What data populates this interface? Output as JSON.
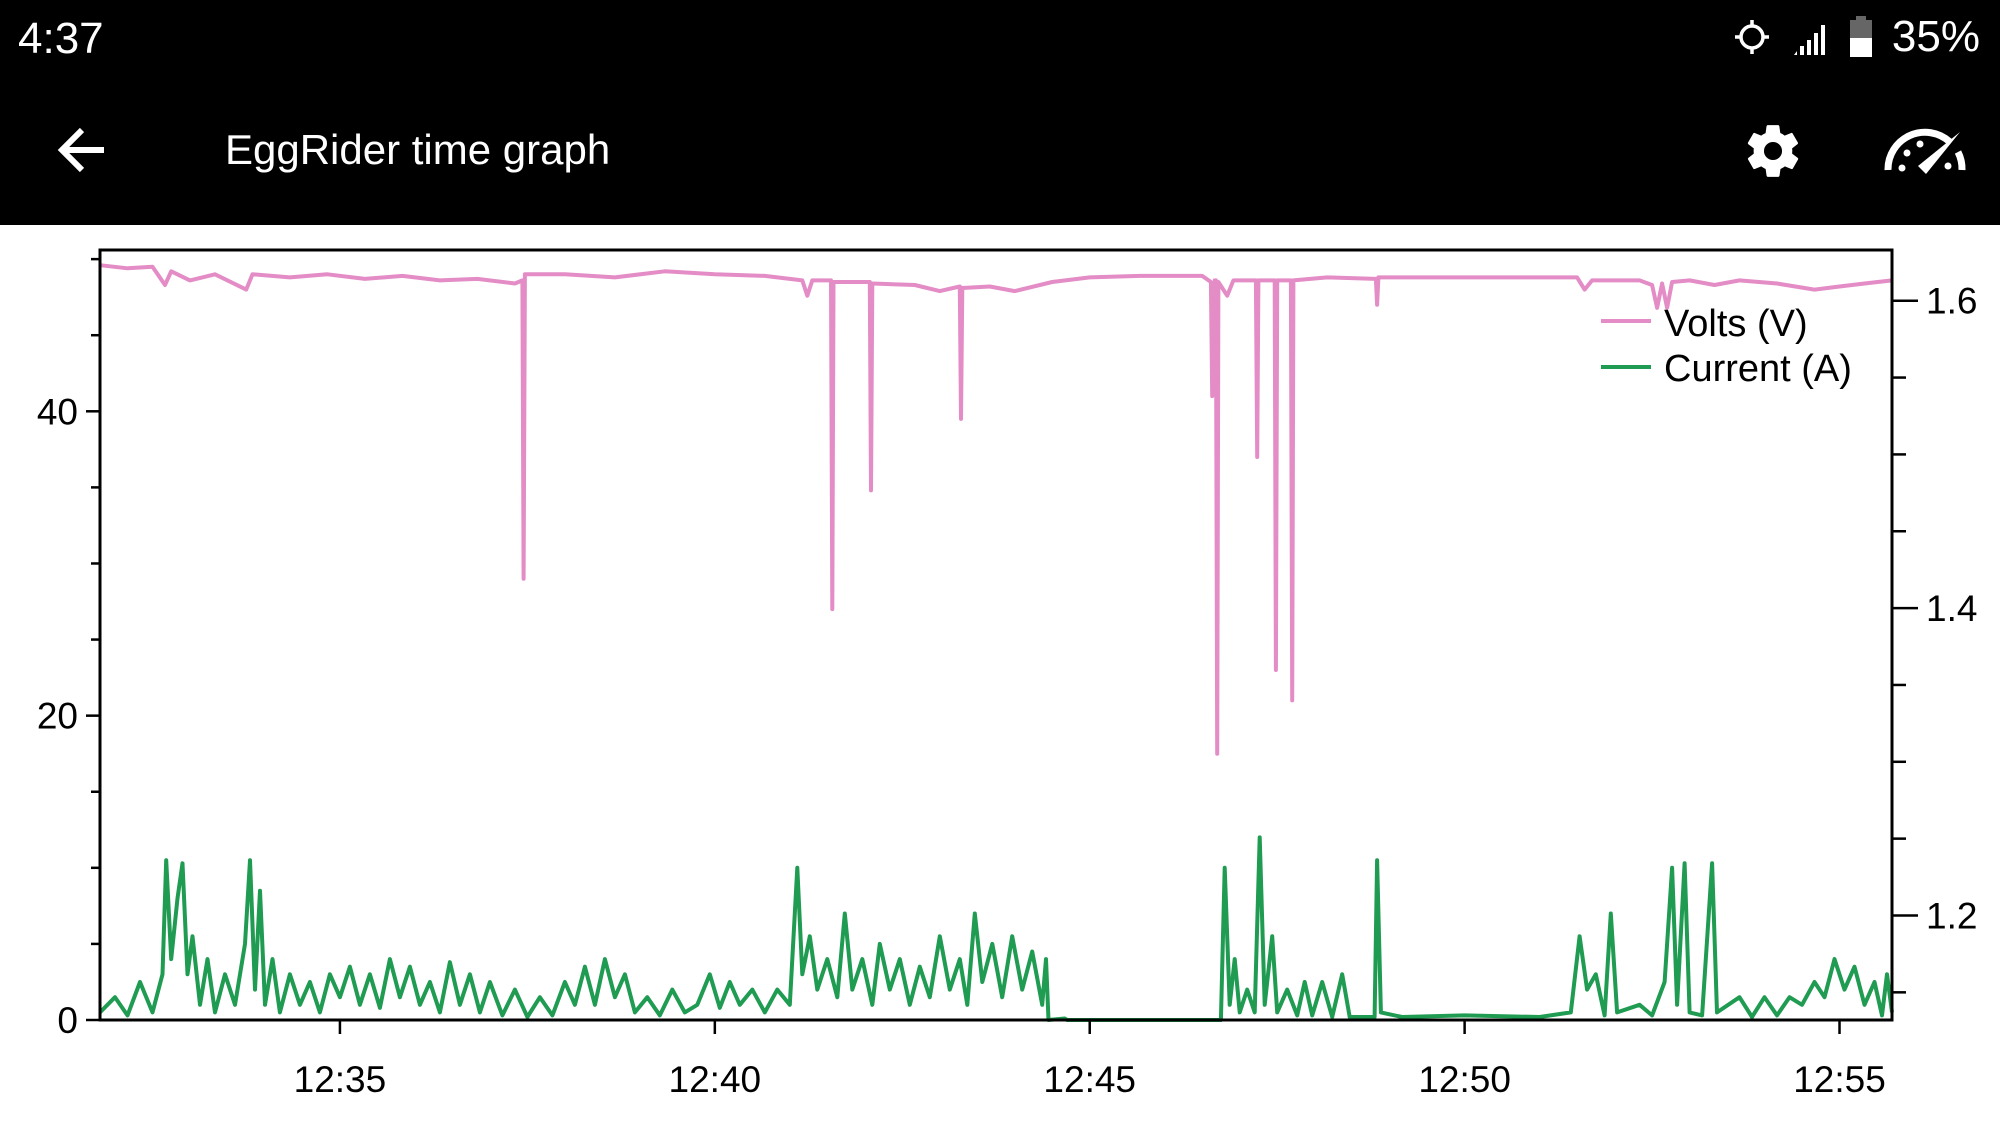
{
  "status_bar": {
    "time": "4:37",
    "battery": "35%",
    "icons": [
      "location-icon",
      "signal-icon",
      "battery-icon"
    ]
  },
  "app_bar": {
    "title": "EggRider time graph",
    "back_icon": "arrow-back-icon",
    "settings_icon": "gear-icon",
    "dashboard_icon": "speedometer-icon"
  },
  "chart_data": {
    "type": "line",
    "title": "",
    "x_ticks": [
      "12:35",
      "12:40",
      "12:45",
      "12:50",
      "12:55"
    ],
    "xlim": [
      "12:31:48",
      "12:55:42"
    ],
    "left_axis": {
      "ticks": [
        0,
        20,
        40
      ],
      "minor_step": 5,
      "ylim": [
        0,
        50.6
      ]
    },
    "right_axis": {
      "ticks": [
        "1.2",
        "1.4",
        "1.6"
      ],
      "minor_step": 0.05,
      "ylim": [
        1.132,
        1.633
      ]
    },
    "grid": false,
    "legend_placement": "top-right",
    "series": [
      {
        "name": "Volts (V)",
        "color": "#e38cc6",
        "axis": "left",
        "points": [
          [
            "12:31:48",
            49.6
          ],
          [
            "12:32:10",
            49.4
          ],
          [
            "12:32:30",
            49.5
          ],
          [
            "12:32:40",
            48.3
          ],
          [
            "12:32:45",
            49.2
          ],
          [
            "12:33:00",
            48.6
          ],
          [
            "12:33:20",
            49.0
          ],
          [
            "12:33:45",
            48.0
          ],
          [
            "12:33:50",
            49.0
          ],
          [
            "12:34:20",
            48.8
          ],
          [
            "12:34:50",
            49.0
          ],
          [
            "12:35:20",
            48.7
          ],
          [
            "12:35:50",
            48.9
          ],
          [
            "12:36:20",
            48.6
          ],
          [
            "12:36:50",
            48.7
          ],
          [
            "12:37:20",
            48.4
          ],
          [
            "12:37:26",
            48.6
          ],
          [
            "12:37:27",
            29.0
          ],
          [
            "12:37:28",
            49.0
          ],
          [
            "12:38:00",
            49.0
          ],
          [
            "12:38:40",
            48.8
          ],
          [
            "12:39:20",
            49.2
          ],
          [
            "12:40:00",
            49.0
          ],
          [
            "12:40:40",
            48.9
          ],
          [
            "12:41:10",
            48.6
          ],
          [
            "12:41:14",
            47.6
          ],
          [
            "12:41:18",
            48.6
          ],
          [
            "12:41:33",
            48.6
          ],
          [
            "12:41:34",
            27.0
          ],
          [
            "12:41:35",
            48.5
          ],
          [
            "12:42:04",
            48.5
          ],
          [
            "12:42:05",
            34.8
          ],
          [
            "12:42:06",
            48.4
          ],
          [
            "12:42:40",
            48.3
          ],
          [
            "12:43:00",
            47.9
          ],
          [
            "12:43:16",
            48.2
          ],
          [
            "12:43:17",
            39.5
          ],
          [
            "12:43:18",
            48.1
          ],
          [
            "12:43:40",
            48.2
          ],
          [
            "12:44:00",
            47.9
          ],
          [
            "12:44:30",
            48.5
          ],
          [
            "12:45:00",
            48.8
          ],
          [
            "12:45:40",
            48.9
          ],
          [
            "12:46:30",
            48.9
          ],
          [
            "12:46:37",
            48.5
          ],
          [
            "12:46:38",
            41.0
          ],
          [
            "12:46:40",
            48.6
          ],
          [
            "12:46:41",
            48.6
          ],
          [
            "12:46:42",
            17.5
          ],
          [
            "12:46:43",
            48.5
          ],
          [
            "12:46:50",
            47.6
          ],
          [
            "12:46:55",
            48.6
          ],
          [
            "12:47:13",
            48.6
          ],
          [
            "12:47:14",
            37.0
          ],
          [
            "12:47:15",
            48.6
          ],
          [
            "12:47:28",
            48.6
          ],
          [
            "12:47:29",
            23.0
          ],
          [
            "12:47:30",
            48.6
          ],
          [
            "12:47:41",
            48.6
          ],
          [
            "12:47:42",
            21.0
          ],
          [
            "12:47:43",
            48.6
          ],
          [
            "12:48:10",
            48.8
          ],
          [
            "12:48:49",
            48.7
          ],
          [
            "12:48:50",
            47.0
          ],
          [
            "12:48:51",
            48.8
          ],
          [
            "12:49:30",
            48.8
          ],
          [
            "12:50:10",
            48.8
          ],
          [
            "12:51:00",
            48.8
          ],
          [
            "12:51:30",
            48.8
          ],
          [
            "12:51:36",
            48.0
          ],
          [
            "12:51:42",
            48.6
          ],
          [
            "12:52:20",
            48.6
          ],
          [
            "12:52:30",
            48.3
          ],
          [
            "12:52:34",
            46.8
          ],
          [
            "12:52:38",
            48.4
          ],
          [
            "12:52:42",
            46.8
          ],
          [
            "12:52:46",
            48.5
          ],
          [
            "12:53:00",
            48.6
          ],
          [
            "12:53:20",
            48.3
          ],
          [
            "12:53:40",
            48.6
          ],
          [
            "12:54:10",
            48.4
          ],
          [
            "12:54:40",
            48.0
          ],
          [
            "12:55:00",
            48.2
          ],
          [
            "12:55:20",
            48.4
          ],
          [
            "12:55:42",
            48.6
          ]
        ]
      },
      {
        "name": "Current (A)",
        "color": "#1f9b52",
        "axis": "left",
        "points": [
          [
            "12:31:48",
            0.5
          ],
          [
            "12:32:00",
            1.5
          ],
          [
            "12:32:10",
            0.3
          ],
          [
            "12:32:20",
            2.5
          ],
          [
            "12:32:30",
            0.5
          ],
          [
            "12:32:38",
            3
          ],
          [
            "12:32:41",
            10.5
          ],
          [
            "12:32:45",
            4
          ],
          [
            "12:32:50",
            8
          ],
          [
            "12:32:54",
            10.3
          ],
          [
            "12:32:58",
            3
          ],
          [
            "12:33:02",
            5.5
          ],
          [
            "12:33:08",
            1
          ],
          [
            "12:33:14",
            4
          ],
          [
            "12:33:20",
            0.5
          ],
          [
            "12:33:28",
            3
          ],
          [
            "12:33:36",
            1
          ],
          [
            "12:33:44",
            5
          ],
          [
            "12:33:48",
            10.5
          ],
          [
            "12:33:52",
            2
          ],
          [
            "12:33:56",
            8.5
          ],
          [
            "12:34:00",
            1
          ],
          [
            "12:34:06",
            4
          ],
          [
            "12:34:12",
            0.5
          ],
          [
            "12:34:20",
            3
          ],
          [
            "12:34:28",
            1
          ],
          [
            "12:34:36",
            2.5
          ],
          [
            "12:34:44",
            0.5
          ],
          [
            "12:34:52",
            3
          ],
          [
            "12:35:00",
            1.5
          ],
          [
            "12:35:08",
            3.5
          ],
          [
            "12:35:16",
            1
          ],
          [
            "12:35:24",
            3
          ],
          [
            "12:35:32",
            0.8
          ],
          [
            "12:35:40",
            4
          ],
          [
            "12:35:48",
            1.5
          ],
          [
            "12:35:56",
            3.5
          ],
          [
            "12:36:04",
            1
          ],
          [
            "12:36:12",
            2.5
          ],
          [
            "12:36:20",
            0.5
          ],
          [
            "12:36:28",
            3.8
          ],
          [
            "12:36:36",
            1
          ],
          [
            "12:36:44",
            3
          ],
          [
            "12:36:52",
            0.5
          ],
          [
            "12:37:00",
            2.5
          ],
          [
            "12:37:10",
            0.3
          ],
          [
            "12:37:20",
            2
          ],
          [
            "12:37:30",
            0.2
          ],
          [
            "12:37:40",
            1.5
          ],
          [
            "12:37:50",
            0.3
          ],
          [
            "12:38:00",
            2.5
          ],
          [
            "12:38:08",
            1
          ],
          [
            "12:38:16",
            3.5
          ],
          [
            "12:38:24",
            1
          ],
          [
            "12:38:32",
            4
          ],
          [
            "12:38:40",
            1.5
          ],
          [
            "12:38:48",
            3
          ],
          [
            "12:38:56",
            0.5
          ],
          [
            "12:39:06",
            1.5
          ],
          [
            "12:39:16",
            0.3
          ],
          [
            "12:39:26",
            2
          ],
          [
            "12:39:36",
            0.5
          ],
          [
            "12:39:46",
            1
          ],
          [
            "12:39:56",
            3
          ],
          [
            "12:40:04",
            0.8
          ],
          [
            "12:40:12",
            2.5
          ],
          [
            "12:40:20",
            1
          ],
          [
            "12:40:30",
            2
          ],
          [
            "12:40:40",
            0.5
          ],
          [
            "12:40:50",
            2
          ],
          [
            "12:41:00",
            1
          ],
          [
            "12:41:06",
            10
          ],
          [
            "12:41:10",
            3
          ],
          [
            "12:41:16",
            5.5
          ],
          [
            "12:41:22",
            2
          ],
          [
            "12:41:30",
            4
          ],
          [
            "12:41:38",
            1.5
          ],
          [
            "12:41:44",
            7
          ],
          [
            "12:41:50",
            2
          ],
          [
            "12:41:58",
            4
          ],
          [
            "12:42:06",
            1
          ],
          [
            "12:42:12",
            5
          ],
          [
            "12:42:20",
            2
          ],
          [
            "12:42:28",
            4
          ],
          [
            "12:42:36",
            1
          ],
          [
            "12:42:44",
            3.5
          ],
          [
            "12:42:52",
            1.5
          ],
          [
            "12:43:00",
            5.5
          ],
          [
            "12:43:08",
            2
          ],
          [
            "12:43:16",
            4
          ],
          [
            "12:43:22",
            1
          ],
          [
            "12:43:28",
            7
          ],
          [
            "12:43:34",
            2.5
          ],
          [
            "12:43:42",
            5
          ],
          [
            "12:43:50",
            1.5
          ],
          [
            "12:43:58",
            5.5
          ],
          [
            "12:44:06",
            2
          ],
          [
            "12:44:14",
            4.5
          ],
          [
            "12:44:22",
            1
          ],
          [
            "12:44:25",
            4
          ],
          [
            "12:44:27",
            0
          ],
          [
            "12:44:40",
            0.1
          ],
          [
            "12:44:42",
            0
          ],
          [
            "12:46:45",
            0
          ],
          [
            "12:46:48",
            10
          ],
          [
            "12:46:52",
            1
          ],
          [
            "12:46:56",
            4
          ],
          [
            "12:47:00",
            0.5
          ],
          [
            "12:47:06",
            2
          ],
          [
            "12:47:12",
            0.5
          ],
          [
            "12:47:16",
            12
          ],
          [
            "12:47:20",
            1
          ],
          [
            "12:47:26",
            5.5
          ],
          [
            "12:47:30",
            0.5
          ],
          [
            "12:47:38",
            2
          ],
          [
            "12:47:46",
            0.3
          ],
          [
            "12:47:52",
            2.5
          ],
          [
            "12:47:58",
            0.3
          ],
          [
            "12:48:06",
            2.5
          ],
          [
            "12:48:14",
            0.2
          ],
          [
            "12:48:22",
            3
          ],
          [
            "12:48:28",
            0.2
          ],
          [
            "12:48:48",
            0.2
          ],
          [
            "12:48:50",
            10.5
          ],
          [
            "12:48:53",
            0.5
          ],
          [
            "12:49:10",
            0.2
          ],
          [
            "12:50:00",
            0.3
          ],
          [
            "12:51:00",
            0.2
          ],
          [
            "12:51:25",
            0.5
          ],
          [
            "12:51:32",
            5.5
          ],
          [
            "12:51:38",
            2
          ],
          [
            "12:51:45",
            3
          ],
          [
            "12:51:52",
            0.3
          ],
          [
            "12:51:57",
            7
          ],
          [
            "12:52:02",
            0.5
          ],
          [
            "12:52:20",
            1
          ],
          [
            "12:52:30",
            0.3
          ],
          [
            "12:52:40",
            2.5
          ],
          [
            "12:52:46",
            10
          ],
          [
            "12:52:50",
            1
          ],
          [
            "12:52:56",
            10.3
          ],
          [
            "12:53:00",
            0.5
          ],
          [
            "12:53:10",
            0.3
          ],
          [
            "12:53:18",
            10.3
          ],
          [
            "12:53:22",
            0.5
          ],
          [
            "12:53:40",
            1.5
          ],
          [
            "12:53:50",
            0.2
          ],
          [
            "12:54:00",
            1.5
          ],
          [
            "12:54:10",
            0.3
          ],
          [
            "12:54:20",
            1.5
          ],
          [
            "12:54:30",
            1
          ],
          [
            "12:54:40",
            2.5
          ],
          [
            "12:54:48",
            1.5
          ],
          [
            "12:54:56",
            4
          ],
          [
            "12:55:04",
            2
          ],
          [
            "12:55:12",
            3.5
          ],
          [
            "12:55:20",
            1
          ],
          [
            "12:55:28",
            2.5
          ],
          [
            "12:55:34",
            0.3
          ],
          [
            "12:55:38",
            3
          ],
          [
            "12:55:42",
            0.5
          ]
        ]
      }
    ]
  }
}
